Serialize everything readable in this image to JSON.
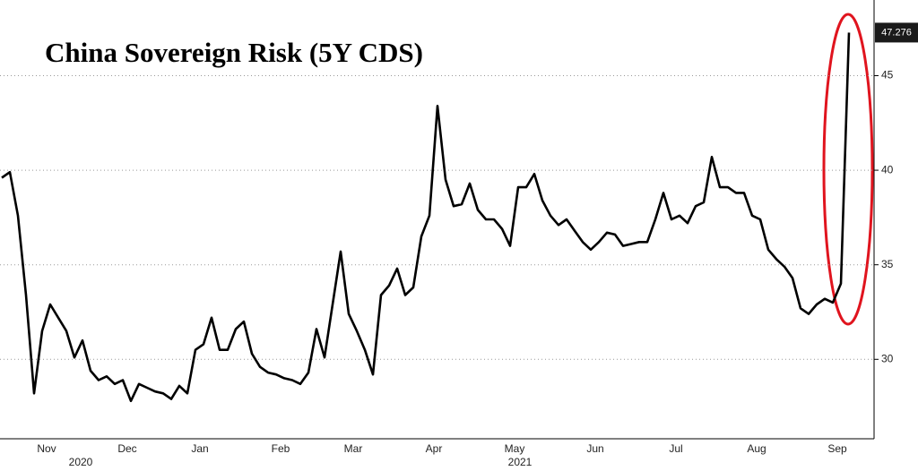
{
  "chart_data": {
    "type": "line",
    "title": "China Sovereign Risk (5Y CDS)",
    "categories": [
      null,
      null,
      null,
      null,
      null,
      null,
      "Nov",
      null,
      null,
      null,
      null,
      null,
      null,
      null,
      null,
      null,
      "Dec",
      null,
      null,
      null,
      null,
      null,
      null,
      null,
      null,
      "Jan",
      null,
      null,
      null,
      null,
      null,
      null,
      null,
      null,
      null,
      "Feb",
      null,
      null,
      null,
      null,
      null,
      null,
      null,
      null,
      "Mar",
      null,
      null,
      null,
      null,
      null,
      null,
      null,
      null,
      null,
      "Apr",
      null,
      null,
      null,
      null,
      null,
      null,
      null,
      null,
      null,
      "May",
      null,
      null,
      null,
      null,
      null,
      null,
      null,
      null,
      null,
      "Jun",
      null,
      null,
      null,
      null,
      null,
      null,
      null,
      null,
      null,
      "Jul",
      null,
      null,
      null,
      null,
      null,
      null,
      null,
      null,
      null,
      "Aug",
      null,
      null,
      null,
      null,
      null,
      null,
      null,
      null,
      null,
      "Sep",
      null
    ],
    "years": [
      "2020",
      "2021"
    ],
    "values": [
      39.6,
      39.9,
      37.6,
      33.4,
      28.2,
      31.5,
      32.9,
      32.2,
      31.5,
      30.1,
      31.0,
      29.4,
      28.9,
      29.1,
      28.7,
      28.9,
      27.8,
      28.7,
      28.5,
      28.3,
      28.2,
      27.9,
      28.6,
      28.2,
      30.5,
      30.8,
      32.2,
      30.5,
      30.5,
      31.6,
      32.0,
      30.3,
      29.6,
      29.3,
      29.2,
      29.0,
      28.9,
      28.7,
      29.3,
      31.6,
      30.1,
      32.9,
      35.7,
      32.4,
      31.5,
      30.5,
      29.2,
      33.4,
      33.9,
      34.8,
      33.4,
      33.8,
      36.5,
      37.6,
      43.4,
      39.5,
      38.1,
      38.2,
      39.3,
      37.9,
      37.4,
      37.4,
      36.9,
      36.0,
      39.1,
      39.1,
      39.8,
      38.4,
      37.6,
      37.1,
      37.4,
      36.8,
      36.2,
      35.8,
      36.2,
      36.7,
      36.6,
      36.0,
      36.1,
      36.2,
      36.2,
      37.4,
      38.8,
      37.4,
      37.6,
      37.2,
      38.1,
      38.3,
      40.7,
      39.1,
      39.1,
      38.8,
      38.8,
      37.6,
      37.4,
      35.8,
      35.3,
      34.9,
      34.3,
      32.7,
      32.4,
      32.9,
      33.2,
      33.0,
      34.0,
      47.276
    ],
    "color": "#000000",
    "ylim": [
      25.8,
      49.0
    ],
    "yticks": [
      30,
      35,
      40,
      45
    ],
    "grid": true
  }
}
